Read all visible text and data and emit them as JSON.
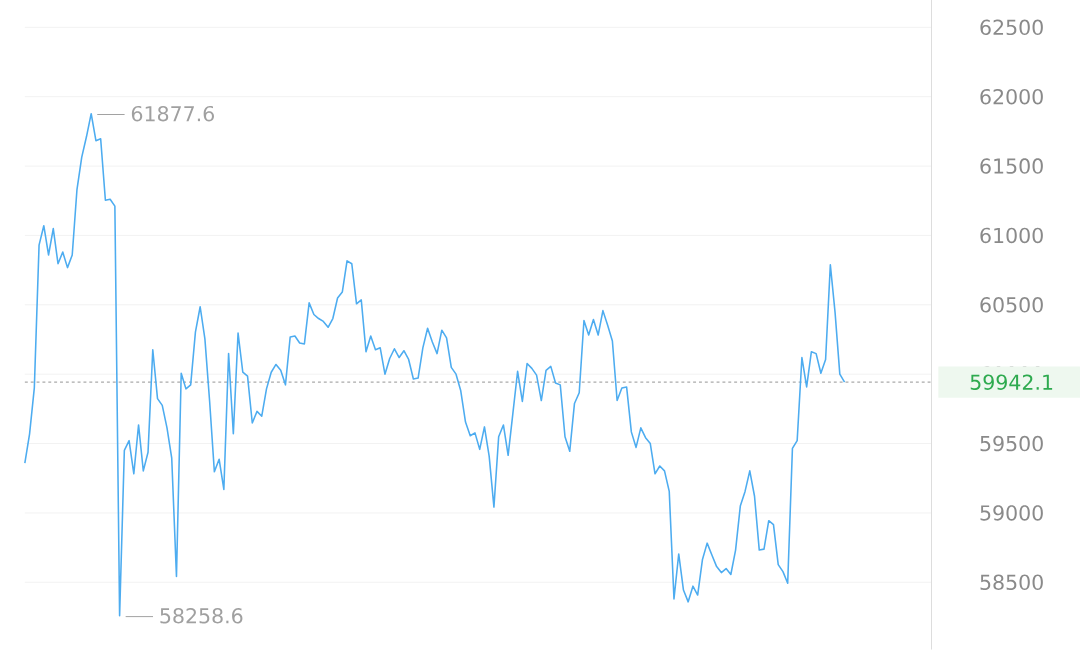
{
  "chart_data": {
    "type": "line",
    "categories": [
      null,
      null,
      null,
      null,
      null,
      null,
      null,
      null,
      null,
      null,
      null,
      null,
      null,
      null,
      null,
      null,
      null,
      null,
      null,
      null,
      null,
      null,
      null,
      null,
      null,
      null,
      null,
      null,
      null,
      null,
      null,
      null,
      null,
      null,
      null,
      null,
      null,
      null,
      null,
      null,
      null,
      null,
      null,
      null,
      null,
      null,
      null,
      null,
      null,
      null,
      null,
      null,
      null,
      null,
      null,
      null,
      null,
      null,
      null,
      null,
      null,
      null,
      null,
      null,
      null,
      null,
      null,
      null,
      null,
      null,
      null,
      null,
      null,
      null,
      null,
      null,
      null,
      null,
      null,
      null,
      null,
      null,
      null,
      null,
      null,
      null,
      null,
      null,
      null,
      null,
      null,
      null,
      null,
      null,
      null,
      null,
      null,
      null,
      null,
      null,
      null,
      null,
      null,
      null,
      null,
      null,
      null,
      null,
      null,
      null,
      null,
      null,
      null,
      null,
      null,
      null,
      null,
      null,
      null,
      null,
      null,
      null,
      null,
      null,
      null,
      null,
      null,
      null,
      null,
      null,
      null,
      null,
      null,
      null,
      null,
      null,
      null,
      null,
      null,
      null,
      null,
      null,
      null,
      null,
      null,
      null,
      null,
      null,
      null,
      null,
      null,
      null,
      null,
      null,
      null,
      null,
      null,
      null,
      null,
      null,
      null,
      null,
      null,
      null,
      null,
      null,
      null,
      null,
      null,
      null,
      null,
      null,
      null,
      null
    ],
    "series": [
      {
        "color": "#4dacf0",
        "values": [
          59359,
          59570,
          59901,
          60930,
          61070,
          60859,
          61049,
          60796,
          60880,
          60768,
          60859,
          61331,
          61563,
          61711,
          61877.6,
          61683,
          61697,
          61254,
          61261,
          61211,
          58258.6,
          59451,
          59521,
          59282,
          59634,
          59303,
          59437,
          60176,
          59824,
          59775,
          59613,
          59394,
          58542,
          60007,
          59894,
          59923,
          60303,
          60486,
          60254,
          59803,
          59296,
          59387,
          59169,
          60148,
          59570,
          60296,
          60014,
          59986,
          59648,
          59732,
          59697,
          59894,
          60014,
          60070,
          60028,
          59923,
          60268,
          60275,
          60225,
          60218,
          60514,
          60430,
          60401,
          60380,
          60338,
          60401,
          60549,
          60592,
          60817,
          60796,
          60507,
          60535,
          60162,
          60275,
          60176,
          60190,
          60000,
          60113,
          60183,
          60120,
          60169,
          60106,
          59965,
          59972,
          60190,
          60331,
          60232,
          60148,
          60317,
          60261,
          60049,
          60000,
          59880,
          59655,
          59556,
          59577,
          59458,
          59620,
          59408,
          59042,
          59549,
          59634,
          59415,
          59718,
          60021,
          59803,
          60077,
          60042,
          59993,
          59810,
          60028,
          60056,
          59937,
          59923,
          59549,
          59444,
          59789,
          59866,
          60387,
          60282,
          60394,
          60282,
          60458,
          60352,
          60239,
          59810,
          59901,
          59908,
          59584,
          59472,
          59613,
          59542,
          59500,
          59282,
          59338,
          59303,
          59155,
          58380,
          58704,
          58444,
          58359,
          58472,
          58408,
          58662,
          58782,
          58697,
          58613,
          58570,
          58599,
          58556,
          58732,
          59049,
          59155,
          59303,
          59120,
          58732,
          58739,
          58944,
          58916,
          58627,
          58577,
          58493,
          59465,
          59521,
          60120,
          59908,
          60162,
          60148,
          60007,
          60106,
          60789,
          60444,
          60000,
          59942.1
        ]
      }
    ],
    "ylim": [
      58014,
      62697
    ],
    "yticks": [
      58500,
      59000,
      59500,
      60000,
      60500,
      61000,
      61500,
      62000,
      62500
    ],
    "grid": "y",
    "marker": "none",
    "line_style": "solid",
    "ref_lines": [
      {
        "axis": "y",
        "value": 59942.1,
        "label": "59942.1",
        "color": "#aaaaaa",
        "line_style": "dashed"
      }
    ],
    "annotations": [
      "61877.6",
      "58258.6"
    ]
  }
}
